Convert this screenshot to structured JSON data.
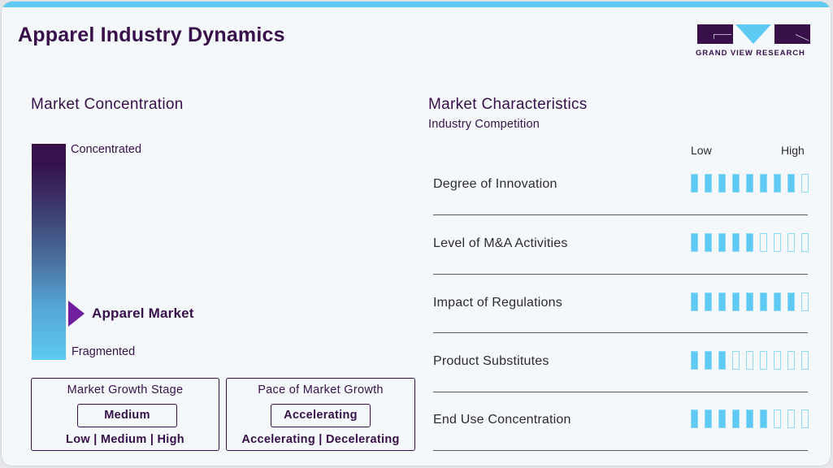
{
  "header": {
    "title": "Apparel Industry Dynamics",
    "logo_text": "GRAND VIEW RESEARCH",
    "accent_color": "#5ecaf4",
    "brand_color": "#37104a"
  },
  "market_concentration": {
    "title": "Market Concentration",
    "top_label": "Concentrated",
    "bottom_label": "Fragmented",
    "marker_label": "Apparel Market",
    "marker_position_pct": 78,
    "marker_color": "#6f1f9e"
  },
  "growth_stage": {
    "title": "Market Growth Stage",
    "value": "Medium",
    "options": "Low | Medium | High"
  },
  "growth_pace": {
    "title": "Pace of Market Growth",
    "value": "Accelerating",
    "options": "Accelerating | Decelerating"
  },
  "market_characteristics": {
    "title": "Market Characteristics",
    "subtitle": "Industry Competition",
    "scale_low": "Low",
    "scale_high": "High",
    "max_segments": 9,
    "rows": [
      {
        "label": "Degree of Innovation",
        "filled": 8
      },
      {
        "label": "Level of M&A Activities",
        "filled": 5
      },
      {
        "label": "Impact of Regulations",
        "filled": 8
      },
      {
        "label": "Product Substitutes",
        "filled": 3
      },
      {
        "label": "End Use Concentration",
        "filled": 6
      }
    ]
  }
}
